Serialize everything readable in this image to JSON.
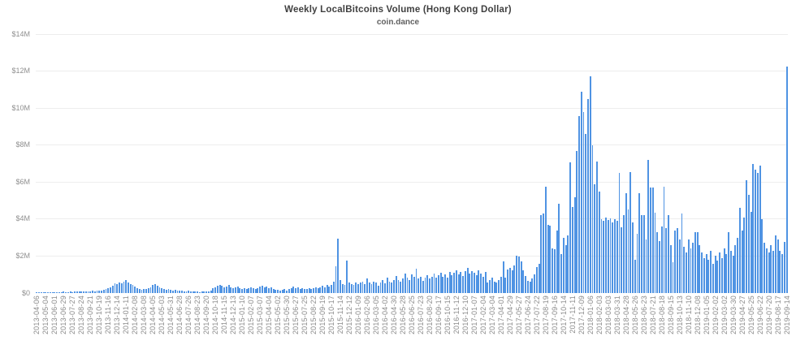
{
  "title": "Weekly LocalBitcoins Volume (Hong Kong Dollar)",
  "subtitle": "coin.dance",
  "colors": {
    "bar": "#4f93e3",
    "grid": "#ededed",
    "axis_text": "#8a8a8a",
    "title_text": "#404040",
    "subtitle_text": "#606060",
    "background": "#ffffff"
  },
  "chart_data": {
    "type": "bar",
    "title": "Weekly LocalBitcoins Volume (Hong Kong Dollar)",
    "subtitle": "coin.dance",
    "xlabel": "",
    "ylabel": "",
    "currency": "HKD",
    "grid": true,
    "legend": false,
    "ylim_millions": [
      0,
      14
    ],
    "y_tick_labels": [
      "$0",
      "$2M",
      "$4M",
      "$6M",
      "$8M",
      "$10M",
      "$12M",
      "$14M"
    ],
    "x_interval": "weekly",
    "x_start_date": "2013-04-06",
    "x_end_date": "2019-09-14",
    "x_tick_every_n_bars": 4,
    "x_tick_labels": [
      "2013-04-06",
      "2013-05-04",
      "2013-06-01",
      "2013-06-29",
      "2013-07-27",
      "2013-08-24",
      "2013-09-21",
      "2013-10-19",
      "2013-11-16",
      "2013-12-14",
      "2014-01-11",
      "2014-02-08",
      "2014-03-08",
      "2014-04-05",
      "2014-05-03",
      "2014-05-31",
      "2014-06-28",
      "2014-07-26",
      "2014-08-23",
      "2014-09-20",
      "2014-10-18",
      "2014-11-15",
      "2014-12-13",
      "2015-01-10",
      "2015-02-07",
      "2015-03-07",
      "2015-04-04",
      "2015-05-02",
      "2015-05-30",
      "2015-06-27",
      "2015-07-25",
      "2015-08-22",
      "2015-09-19",
      "2015-10-17",
      "2015-11-14",
      "2015-12-12",
      "2016-01-09",
      "2016-02-06",
      "2016-03-05",
      "2016-04-02",
      "2016-04-30",
      "2016-05-28",
      "2016-06-25",
      "2016-07-23",
      "2016-08-20",
      "2016-09-17",
      "2016-10-15",
      "2016-11-12",
      "2016-12-10",
      "2017-01-07",
      "2017-02-04",
      "2017-03-04",
      "2017-04-01",
      "2017-04-29",
      "2017-05-27",
      "2017-06-24",
      "2017-07-22",
      "2017-08-19",
      "2017-09-16",
      "2017-10-14",
      "2017-11-11",
      "2017-12-09",
      "2018-01-06",
      "2018-02-03",
      "2018-03-03",
      "2018-03-31",
      "2018-04-28",
      "2018-05-26",
      "2018-06-23",
      "2018-07-21",
      "2018-08-18",
      "2018-09-15",
      "2018-10-13",
      "2018-11-10",
      "2018-12-08",
      "2019-01-05",
      "2019-02-02",
      "2019-03-02",
      "2019-03-30",
      "2019-04-27",
      "2019-05-25",
      "2019-06-22",
      "2019-07-20",
      "2019-08-17",
      "2019-09-14"
    ],
    "values_millions": [
      0.05,
      0.03,
      0.04,
      0.06,
      0.04,
      0.03,
      0.05,
      0.04,
      0.06,
      0.05,
      0.04,
      0.06,
      0.07,
      0.05,
      0.06,
      0.08,
      0.06,
      0.07,
      0.09,
      0.08,
      0.1,
      0.08,
      0.09,
      0.11,
      0.1,
      0.12,
      0.1,
      0.13,
      0.15,
      0.14,
      0.18,
      0.22,
      0.28,
      0.3,
      0.4,
      0.52,
      0.48,
      0.58,
      0.52,
      0.62,
      0.7,
      0.55,
      0.48,
      0.42,
      0.35,
      0.28,
      0.22,
      0.18,
      0.22,
      0.2,
      0.25,
      0.3,
      0.42,
      0.48,
      0.4,
      0.32,
      0.26,
      0.22,
      0.18,
      0.2,
      0.16,
      0.14,
      0.18,
      0.15,
      0.12,
      0.14,
      0.1,
      0.08,
      0.12,
      0.09,
      0.07,
      0.1,
      0.08,
      0.06,
      0.09,
      0.11,
      0.08,
      0.1,
      0.13,
      0.25,
      0.32,
      0.38,
      0.45,
      0.4,
      0.3,
      0.35,
      0.42,
      0.32,
      0.26,
      0.3,
      0.36,
      0.28,
      0.24,
      0.28,
      0.22,
      0.26,
      0.3,
      0.25,
      0.22,
      0.28,
      0.34,
      0.4,
      0.32,
      0.36,
      0.28,
      0.3,
      0.2,
      0.16,
      0.18,
      0.14,
      0.17,
      0.2,
      0.15,
      0.22,
      0.28,
      0.33,
      0.26,
      0.3,
      0.24,
      0.27,
      0.2,
      0.24,
      0.28,
      0.22,
      0.26,
      0.3,
      0.25,
      0.32,
      0.38,
      0.3,
      0.42,
      0.36,
      0.45,
      0.6,
      1.45,
      2.95,
      0.7,
      0.5,
      0.45,
      1.75,
      0.55,
      0.5,
      0.45,
      0.55,
      0.5,
      0.55,
      0.62,
      0.48,
      0.77,
      0.58,
      0.48,
      0.63,
      0.55,
      0.4,
      0.58,
      0.7,
      0.52,
      0.85,
      0.63,
      0.55,
      0.72,
      0.92,
      0.7,
      0.6,
      0.78,
      1.07,
      0.85,
      0.72,
      1.0,
      0.88,
      1.33,
      0.77,
      0.9,
      0.68,
      0.82,
      0.95,
      0.78,
      0.88,
      1.05,
      0.82,
      0.95,
      1.1,
      0.9,
      1.02,
      0.85,
      1.15,
      0.95,
      1.08,
      1.25,
      1.0,
      1.12,
      0.92,
      1.18,
      1.35,
      1.05,
      1.2,
      1.1,
      0.95,
      1.25,
      1.05,
      0.9,
      1.15,
      0.56,
      0.7,
      0.85,
      0.63,
      0.56,
      0.7,
      0.9,
      1.73,
      0.85,
      1.29,
      1.36,
      1.21,
      1.5,
      2.0,
      1.97,
      1.73,
      1.21,
      0.92,
      0.67,
      0.63,
      0.77,
      1.0,
      1.4,
      1.6,
      4.2,
      4.3,
      5.75,
      3.7,
      3.65,
      2.4,
      2.35,
      3.4,
      4.85,
      2.1,
      3.0,
      2.6,
      3.1,
      7.05,
      4.65,
      5.2,
      7.7,
      9.55,
      10.9,
      9.8,
      8.6,
      10.5,
      11.7,
      8.0,
      5.9,
      7.1,
      5.5,
      4.0,
      3.9,
      4.1,
      3.95,
      4.05,
      3.8,
      4.0,
      3.9,
      6.5,
      3.55,
      4.2,
      5.4,
      4.5,
      6.55,
      3.8,
      1.8,
      3.2,
      5.4,
      4.2,
      4.2,
      2.9,
      7.2,
      5.7,
      5.7,
      4.35,
      3.3,
      2.8,
      3.6,
      5.75,
      3.5,
      4.2,
      2.6,
      1.65,
      3.4,
      3.5,
      2.9,
      4.3,
      2.5,
      2.2,
      2.9,
      2.4,
      2.7,
      3.3,
      3.3,
      2.6,
      2.2,
      1.9,
      2.1,
      1.8,
      2.3,
      1.6,
      2.0,
      1.75,
      2.2,
      1.9,
      2.4,
      2.1,
      3.3,
      2.3,
      2.0,
      2.6,
      3.0,
      4.6,
      3.4,
      4.1,
      6.1,
      5.3,
      4.4,
      7.0,
      6.65,
      6.5,
      6.9,
      4.0,
      2.7,
      2.4,
      2.2,
      2.6,
      2.3,
      3.1,
      2.9,
      2.3,
      2.1,
      2.75,
      12.25
    ]
  }
}
